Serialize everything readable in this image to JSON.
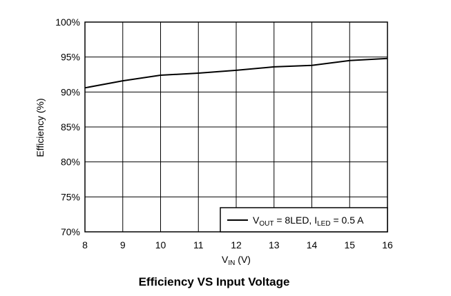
{
  "chart_data": {
    "type": "line",
    "title": "Efficiency VS Input Voltage",
    "xlabel": {
      "main": "V",
      "sub": "IN",
      "suffix": " (V)"
    },
    "ylabel": "Efficiency (%)",
    "xlim": [
      8,
      16
    ],
    "ylim": [
      70,
      100
    ],
    "x_ticks": [
      8,
      9,
      10,
      11,
      12,
      13,
      14,
      15,
      16
    ],
    "x_tick_labels": [
      "8",
      "9",
      "10",
      "11",
      "12",
      "13",
      "14",
      "15",
      "16"
    ],
    "y_ticks": [
      70,
      75,
      80,
      85,
      90,
      95,
      100
    ],
    "y_tick_labels": [
      "70%",
      "75%",
      "80%",
      "85%",
      "90%",
      "95%",
      "100%"
    ],
    "grid": true,
    "legend_position": "bottom-right",
    "legend": {
      "v": "V",
      "v_sub": "OUT",
      "mid": " = 8LED, ",
      "i": "I",
      "i_sub": "LED",
      "end": " = 0.5 A"
    },
    "series": [
      {
        "name": "VOUT = 8LED, ILED = 0.5 A",
        "color": "#000000",
        "x": [
          8,
          9,
          10,
          11,
          12,
          13,
          14,
          15,
          16
        ],
        "y": [
          90.6,
          91.6,
          92.4,
          92.7,
          93.1,
          93.6,
          93.8,
          94.5,
          94.8
        ]
      }
    ]
  }
}
